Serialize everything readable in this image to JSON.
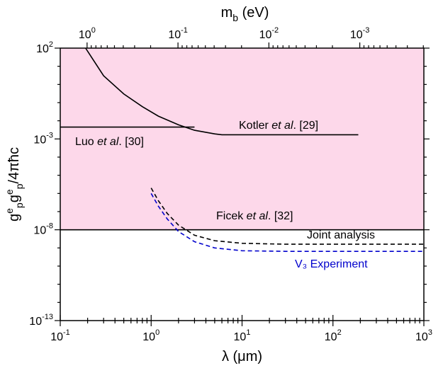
{
  "chart_data": {
    "type": "line",
    "x_axis": {
      "label_text": "λ (μm)",
      "scale": "log",
      "range": [
        0.1,
        1000
      ],
      "ticks": [
        {
          "value": 0.1,
          "base": "10",
          "exp": "-1"
        },
        {
          "value": 1,
          "base": "10",
          "exp": "0"
        },
        {
          "value": 10,
          "base": "10",
          "exp": "1"
        },
        {
          "value": 100,
          "base": "10",
          "exp": "2"
        },
        {
          "value": 1000,
          "base": "10",
          "exp": "3"
        }
      ]
    },
    "top_axis": {
      "label_main": "m",
      "label_sub": "b",
      "label_unit": " (eV)",
      "scale": "log",
      "ticks": [
        {
          "value": 1,
          "base": "10",
          "exp": "0"
        },
        {
          "value": 0.1,
          "base": "10",
          "exp": "-1"
        },
        {
          "value": 0.01,
          "base": "10",
          "exp": "-2"
        },
        {
          "value": 0.001,
          "base": "10",
          "exp": "-3"
        }
      ]
    },
    "y_axis": {
      "scale": "log",
      "range": [
        1e-13,
        100
      ],
      "label_parts": [
        "g",
        "e",
        "p",
        "g",
        "e",
        "p",
        "/4πħc"
      ],
      "ticks": [
        {
          "value": 100,
          "base": "10",
          "exp": "2"
        },
        {
          "value": 0.001,
          "base": "10",
          "exp": "-3"
        },
        {
          "value": 1e-08,
          "base": "10",
          "exp": "-8"
        },
        {
          "value": 1e-13,
          "base": "10",
          "exp": "-13"
        }
      ]
    },
    "excluded_region": {
      "color": "#fdd8ea"
    },
    "series": [
      {
        "name_parts": [
          "Kotler ",
          "et al",
          ". [29]"
        ],
        "color": "#000000",
        "dash": false,
        "points": [
          [
            0.19,
            100
          ],
          [
            0.3,
            3.0
          ],
          [
            0.5,
            0.3
          ],
          [
            0.8,
            0.06
          ],
          [
            1.2,
            0.018
          ],
          [
            2,
            0.006
          ],
          [
            3,
            0.003
          ],
          [
            5,
            0.0019
          ],
          [
            6,
            0.0017
          ],
          [
            10,
            0.0017
          ],
          [
            50,
            0.0017
          ],
          [
            190,
            0.0017
          ]
        ]
      },
      {
        "name_parts": [
          "Luo ",
          "et al",
          ". [30]"
        ],
        "color": "#000000",
        "dash": false,
        "points": [
          [
            0.1,
            0.0045
          ],
          [
            3,
            0.0045
          ]
        ]
      },
      {
        "name_parts": [
          "Ficek ",
          "et al",
          ". [32]"
        ],
        "color": "#000000",
        "dash": false,
        "points": [
          [
            0.1,
            1e-08
          ],
          [
            1000,
            1e-08
          ]
        ]
      },
      {
        "name_parts": [
          "Joint analysis",
          "",
          ""
        ],
        "color": "#000000",
        "dash": true,
        "points": [
          [
            1,
            2e-06
          ],
          [
            1.2,
            4e-07
          ],
          [
            1.5,
            8e-08
          ],
          [
            2,
            1.8e-08
          ],
          [
            3,
            5e-09
          ],
          [
            5,
            2.5e-09
          ],
          [
            10,
            1.8e-09
          ],
          [
            30,
            1.6e-09
          ],
          [
            1000,
            1.6e-09
          ]
        ]
      },
      {
        "name_parts": [
          "V₃ Experiment",
          "",
          ""
        ],
        "color": "#0000cc",
        "dash": true,
        "points": [
          [
            1,
            1e-06
          ],
          [
            1.2,
            2e-07
          ],
          [
            1.5,
            4e-08
          ],
          [
            2,
            8e-09
          ],
          [
            3,
            2.2e-09
          ],
          [
            5,
            1e-09
          ],
          [
            10,
            7e-10
          ],
          [
            30,
            6.5e-10
          ],
          [
            1000,
            6.5e-10
          ]
        ]
      }
    ]
  }
}
